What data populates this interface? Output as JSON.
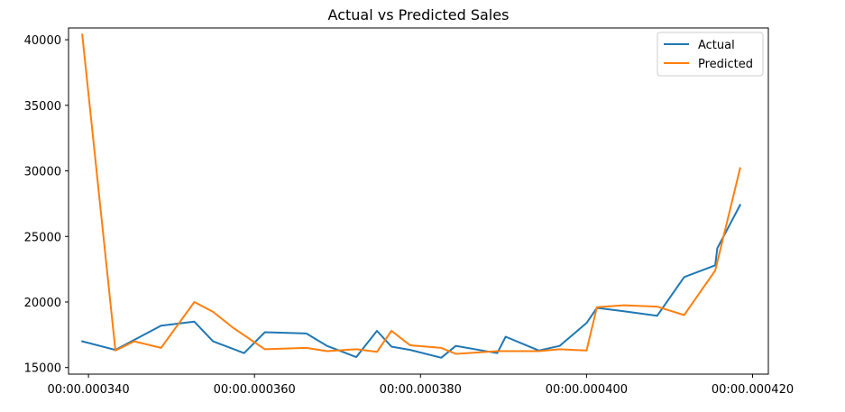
{
  "chart_data": {
    "type": "line",
    "title": "Actual vs Predicted Sales",
    "xlabel": "",
    "ylabel": "",
    "x_unit": "seconds",
    "xlim": [
      0.0003376,
      0.0004219
    ],
    "ylim": [
      14500,
      40900
    ],
    "x_ticks": [
      0.00034,
      0.00036,
      0.00038,
      0.0004,
      0.00042
    ],
    "x_tick_labels": [
      "00:00.000340",
      "00:00.000360",
      "00:00.000380",
      "00:00.000400",
      "00:00.000420"
    ],
    "y_ticks": [
      15000,
      20000,
      25000,
      30000,
      35000,
      40000
    ],
    "y_tick_labels": [
      "15000",
      "20000",
      "25000",
      "30000",
      "35000",
      "40000"
    ],
    "grid": false,
    "legend_position": "top-right",
    "series": [
      {
        "name": "Actual",
        "color": "#1f77b4",
        "x": [
          0.00033925,
          0.00034325,
          0.00034875,
          0.00035275,
          0.000355,
          0.00035875,
          0.00036125,
          0.00036625,
          0.00036875,
          0.00037225,
          0.00037475,
          0.0003765,
          0.00037875,
          0.0003825,
          0.00038425,
          0.00038925,
          0.00039025,
          0.00039425,
          0.00039675,
          0.0004,
          0.00040125,
          0.0004045,
          0.0004085,
          0.00041175,
          0.0004155,
          0.00041575,
          0.0004185
        ],
        "y": [
          17000,
          16350,
          18200,
          18500,
          17000,
          16100,
          17700,
          17600,
          16650,
          15800,
          17800,
          16600,
          16350,
          15750,
          16650,
          16100,
          17350,
          16300,
          16650,
          18400,
          19550,
          19300,
          18950,
          21900,
          22800,
          24100,
          27400
        ]
      },
      {
        "name": "Predicted",
        "color": "#ff7f0e",
        "x": [
          0.00033925,
          0.00034325,
          0.0003455,
          0.00034875,
          0.00035275,
          0.000355,
          0.0003575,
          0.00036125,
          0.00036625,
          0.00036875,
          0.00037225,
          0.00037475,
          0.0003765,
          0.00037875,
          0.0003825,
          0.00038425,
          0.00038925,
          0.00039425,
          0.00039675,
          0.0004,
          0.00040125,
          0.0004045,
          0.0004085,
          0.00041175,
          0.0004155,
          0.0004185
        ],
        "y": [
          40400,
          16300,
          17000,
          16500,
          20000,
          19250,
          18000,
          16400,
          16500,
          16250,
          16400,
          16200,
          17800,
          16700,
          16500,
          16050,
          16250,
          16250,
          16400,
          16300,
          19600,
          19750,
          19650,
          19000,
          22400,
          30200
        ]
      }
    ]
  }
}
